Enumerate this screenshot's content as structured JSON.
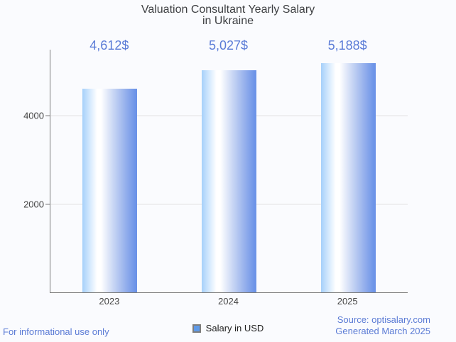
{
  "title": {
    "line1": "Valuation Consultant Yearly Salary",
    "line2": "in Ukraine"
  },
  "chart_data": {
    "type": "bar",
    "title": "Valuation Consultant Yearly Salary in Ukraine",
    "categories": [
      "2023",
      "2024",
      "2025"
    ],
    "values": [
      4612,
      5027,
      5188
    ],
    "value_labels": [
      "4,612$",
      "5,027$",
      "5,188$"
    ],
    "series": [
      {
        "name": "Salary in USD",
        "values": [
          4612,
          5027,
          5188
        ]
      }
    ],
    "xlabel": "",
    "ylabel": "",
    "ylim": [
      0,
      5500
    ],
    "yticks": [
      2000,
      4000
    ],
    "grid": true,
    "legend_position": "bottom"
  },
  "legend": {
    "label": "Salary in USD"
  },
  "footer": {
    "disclaimer": "For informational use only",
    "source": "Source: optisalary.com",
    "generated": "Generated March 2025"
  },
  "colors": {
    "background": "#fafbfe",
    "bar_gradient_left": "#a6d0fa",
    "bar_gradient_highlight": "#ffffff",
    "bar_gradient_right": "#6b92e7",
    "annotation_text": "#5b7cd7",
    "footer_text": "#5b7bd5",
    "title_text": "#3d3f42",
    "axis_line": "#7a7a7a",
    "gridline": "#e2e2e2",
    "tick_text": "#444444",
    "legend_marker_fill": "#5f9ae8",
    "legend_marker_border": "#7d7d7d"
  }
}
